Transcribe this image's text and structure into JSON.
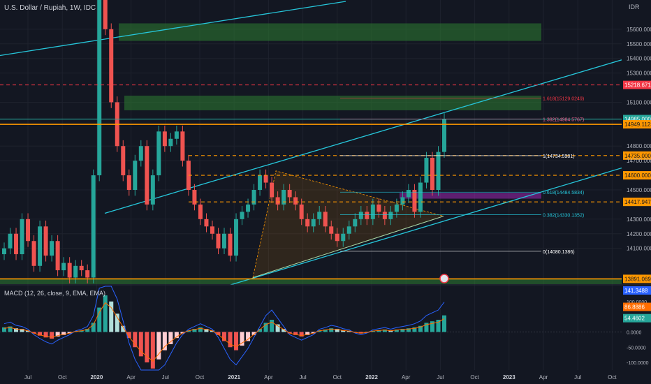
{
  "header": {
    "title": "U.S. Dollar / Rupiah, 1W, IDC",
    "currency": "IDR"
  },
  "macd_label": "MACD (12, 26, close, 9, EMA, EMA)",
  "colors": {
    "background": "#131722",
    "up": "#26a69a",
    "down": "#ef5350",
    "channel": "#26c6da",
    "orange": "#ff9800",
    "red_dash": "#f23645",
    "zone_green": "#2e7d32",
    "zone_purple": "#9c27b0",
    "macd_line": "#2962ff",
    "signal_line": "#ff6d00"
  },
  "chart_data": [
    {
      "type": "candlestick",
      "title": "U.S. Dollar / Rupiah, 1W, IDC",
      "ylim": [
        13850,
        15800
      ],
      "y_ticks": [
        "15600.0000",
        "15500.0000",
        "15400.0000",
        "15300.0000",
        "15100.0000",
        "14800.0000",
        "14700.0000",
        "14500.0000",
        "14300.0000",
        "14200.0000",
        "14100.0000"
      ],
      "x_ticks": [
        "Jul",
        "Oct",
        "2020",
        "Apr",
        "Jul",
        "Oct",
        "2021",
        "Apr",
        "Jul",
        "Oct",
        "2022",
        "Apr",
        "Jul",
        "Oct",
        "2023",
        "Apr",
        "Jul",
        "Oct"
      ],
      "price_labels": [
        {
          "value": 15218.6711,
          "text": "15218.6711",
          "color": "#f23645"
        },
        {
          "value": 14985.0,
          "text": "14985.0000",
          "color": "#26a69a"
        },
        {
          "value": 14949.1123,
          "text": "14949.1123",
          "color": "#ff9800"
        },
        {
          "value": 14735.0,
          "text": "14735.0000",
          "color": "#ff9800"
        },
        {
          "value": 14600.0,
          "text": "14600.0000",
          "color": "#ff9800"
        },
        {
          "value": 14417.9475,
          "text": "14417.9475",
          "color": "#ff9800"
        },
        {
          "value": 13891.0692,
          "text": "13891.0692",
          "color": "#ff9800"
        }
      ],
      "fib_levels": [
        {
          "ratio_label": "1.618(15129.0249)",
          "value": 15129.0249,
          "color": "#f23645"
        },
        {
          "ratio_label": "1.382(14984.5767)",
          "value": 14984.5767,
          "color": "#f06292"
        },
        {
          "ratio_label": "1(14734.5981)",
          "value": 14734.5981,
          "color": "#ffffff"
        },
        {
          "ratio_label": "0.618(14484.5834)",
          "value": 14484.5834,
          "color": "#26c6da"
        },
        {
          "ratio_label": "0.382(14330.1352)",
          "value": 14330.1352,
          "color": "#26c6da"
        },
        {
          "ratio_label": "0(14080.1386)",
          "value": 14080.1386,
          "color": "#ffffff"
        }
      ],
      "zones": [
        {
          "from": 15520,
          "to": 15640,
          "color": "#2e7d32"
        },
        {
          "from": 15045,
          "to": 15145,
          "color": "#2e7d32"
        },
        {
          "from": 14440,
          "to": 14480,
          "color": "#9c27b0"
        },
        {
          "from": 13855,
          "to": 13891,
          "color": "#2e7d32"
        }
      ],
      "close_series": [
        14100,
        14200,
        14060,
        14300,
        14150,
        13980,
        14250,
        14050,
        14150,
        13950,
        14000,
        13900,
        13980,
        13950,
        13900,
        14600,
        16500,
        15600,
        15100,
        14800,
        14600,
        14500,
        14700,
        14800,
        14400,
        14600,
        14900,
        14800,
        14850,
        14900,
        14700,
        14500,
        14400,
        14300,
        14250,
        14200,
        14100,
        14200,
        14050,
        14300,
        14350,
        14400,
        14500,
        14600,
        14550,
        14450,
        14400,
        14500,
        14450,
        14400,
        14300,
        14250,
        14300,
        14350,
        14250,
        14200,
        14150,
        14200,
        14250,
        14300,
        14350,
        14300,
        14400,
        14350,
        14300,
        14350,
        14400,
        14450,
        14500,
        14350,
        14550,
        14720,
        14500,
        14760,
        14985
      ]
    },
    {
      "type": "macd",
      "title": "MACD (12, 26, close, 9, EMA, EMA)",
      "value_labels": [
        {
          "text": "141.3488",
          "color": "#2962ff"
        },
        {
          "text": "86.8886",
          "color": "#ff6d00"
        },
        {
          "text": "54.4602",
          "color": "#26a69a"
        }
      ],
      "y_ticks": [
        "100.0000",
        "50.0000",
        "0.0000",
        "-50.0000",
        "-100.0000"
      ],
      "histogram": [
        15,
        18,
        12,
        10,
        5,
        -5,
        -12,
        -18,
        -22,
        -15,
        -10,
        -5,
        2,
        5,
        10,
        30,
        80,
        120,
        100,
        60,
        20,
        -20,
        -50,
        -80,
        -100,
        -120,
        -90,
        -60,
        -40,
        -20,
        -5,
        5,
        10,
        15,
        10,
        5,
        -10,
        -30,
        -50,
        -60,
        -45,
        -30,
        -10,
        10,
        30,
        40,
        25,
        10,
        -5,
        -10,
        -15,
        -10,
        -5,
        5,
        8,
        12,
        10,
        6,
        4,
        -2,
        -5,
        -2,
        4,
        6,
        8,
        5,
        8,
        10,
        12,
        15,
        20,
        30,
        35,
        40,
        54.4602
      ]
    }
  ]
}
